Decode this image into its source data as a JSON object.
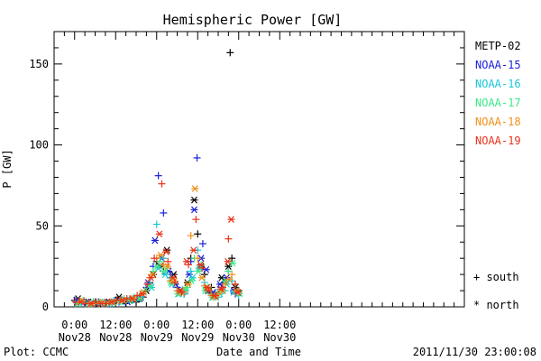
{
  "chart_data": {
    "type": "scatter",
    "title": "Hemispheric Power [GW]",
    "ylabel": "P [GW]",
    "xlabel": "Date and Time",
    "ylim": [
      0,
      170
    ],
    "xlim_hours": [
      -6,
      114
    ],
    "y_ticks": [
      0,
      50,
      100,
      150
    ],
    "x_ticks": [
      {
        "h": 0,
        "line1": "0:00",
        "line2": "Nov28"
      },
      {
        "h": 12,
        "line1": "12:00",
        "line2": "Nov28"
      },
      {
        "h": 24,
        "line1": "0:00",
        "line2": "Nov29"
      },
      {
        "h": 36,
        "line1": "12:00",
        "line2": "Nov29"
      },
      {
        "h": 48,
        "line1": "0:00",
        "line2": "Nov30"
      },
      {
        "h": 60,
        "line1": "12:00",
        "line2": "Nov30"
      }
    ],
    "x_unit_note": "x values are hours since 2011-11-28 00:00",
    "footer_left": "Plot: CCMC",
    "footer_right": "2011/11/30 23:00:08",
    "legend_marks": {
      "south_symbol": "+",
      "south_label": "south",
      "north_symbol": "*",
      "north_label": "north"
    },
    "series": [
      {
        "name": "METP-02",
        "color": "#000000",
        "south": [
          [
            0,
            4
          ],
          [
            3,
            2
          ],
          [
            6,
            3
          ],
          [
            9,
            2
          ],
          [
            12,
            4
          ],
          [
            15,
            2
          ],
          [
            18,
            3
          ],
          [
            20,
            6
          ],
          [
            22,
            15
          ],
          [
            24,
            28
          ],
          [
            26,
            22
          ],
          [
            28,
            18
          ],
          [
            30,
            12
          ],
          [
            32,
            8
          ],
          [
            34,
            30
          ],
          [
            36,
            45
          ],
          [
            38,
            20
          ],
          [
            40,
            12
          ],
          [
            42,
            8
          ],
          [
            44,
            15
          ],
          [
            45.5,
            157
          ],
          [
            46,
            30
          ],
          [
            48,
            10
          ]
        ],
        "north": [
          [
            1,
            5
          ],
          [
            4,
            3
          ],
          [
            7,
            2
          ],
          [
            10,
            3
          ],
          [
            13,
            6
          ],
          [
            16,
            4
          ],
          [
            19,
            5
          ],
          [
            21,
            10
          ],
          [
            23,
            20
          ],
          [
            25,
            25
          ],
          [
            27,
            35
          ],
          [
            29,
            20
          ],
          [
            31,
            10
          ],
          [
            33,
            15
          ],
          [
            35,
            66
          ],
          [
            37,
            25
          ],
          [
            39,
            10
          ],
          [
            41,
            7
          ],
          [
            43,
            18
          ],
          [
            45,
            25
          ],
          [
            47,
            12
          ]
        ]
      },
      {
        "name": "NOAA-15",
        "color": "#1b22d6",
        "south": [
          [
            1,
            3
          ],
          [
            4,
            2
          ],
          [
            7,
            3
          ],
          [
            10,
            2
          ],
          [
            13,
            3
          ],
          [
            16,
            4
          ],
          [
            19,
            6
          ],
          [
            21,
            12
          ],
          [
            23,
            25
          ],
          [
            24.5,
            81
          ],
          [
            26,
            58
          ],
          [
            28,
            20
          ],
          [
            30,
            12
          ],
          [
            32,
            10
          ],
          [
            34,
            28
          ],
          [
            35.8,
            92
          ],
          [
            37.5,
            39
          ],
          [
            39,
            10
          ],
          [
            41,
            8
          ],
          [
            43,
            12
          ],
          [
            45,
            22
          ],
          [
            47,
            8
          ]
        ],
        "north": [
          [
            0.5,
            4
          ],
          [
            3.5,
            3
          ],
          [
            6.5,
            2
          ],
          [
            9.5,
            3
          ],
          [
            12.5,
            4
          ],
          [
            15.5,
            3
          ],
          [
            18.5,
            5
          ],
          [
            21.5,
            15
          ],
          [
            23.5,
            41
          ],
          [
            25.5,
            30
          ],
          [
            27.5,
            22
          ],
          [
            29.5,
            14
          ],
          [
            31.5,
            9
          ],
          [
            33.5,
            20
          ],
          [
            35,
            60
          ],
          [
            37,
            30
          ],
          [
            38.5,
            23
          ],
          [
            40.5,
            9
          ],
          [
            42.5,
            14
          ],
          [
            44.5,
            18
          ],
          [
            46.5,
            10
          ]
        ]
      },
      {
        "name": "NOAA-16",
        "color": "#19c7d9",
        "south": [
          [
            2,
            3
          ],
          [
            5,
            2
          ],
          [
            8,
            2
          ],
          [
            11,
            3
          ],
          [
            14,
            4
          ],
          [
            17,
            5
          ],
          [
            20,
            8
          ],
          [
            22,
            14
          ],
          [
            24,
            51
          ],
          [
            26,
            30
          ],
          [
            28,
            18
          ],
          [
            30,
            10
          ],
          [
            32,
            8
          ],
          [
            34,
            22
          ],
          [
            36,
            35
          ],
          [
            38,
            15
          ],
          [
            40,
            8
          ],
          [
            42,
            6
          ],
          [
            44,
            10
          ],
          [
            46,
            16
          ],
          [
            48,
            7
          ]
        ],
        "north": [
          [
            1.5,
            2
          ],
          [
            4.5,
            2
          ],
          [
            7.5,
            3
          ],
          [
            10.5,
            2
          ],
          [
            13.5,
            3
          ],
          [
            16.5,
            4
          ],
          [
            19.5,
            6
          ],
          [
            22.5,
            12
          ],
          [
            24.5,
            24
          ],
          [
            26.5,
            20
          ],
          [
            28.5,
            14
          ],
          [
            30.5,
            8
          ],
          [
            32.5,
            10
          ],
          [
            34.5,
            18
          ],
          [
            36.5,
            24
          ],
          [
            38.5,
            12
          ],
          [
            40.5,
            6
          ],
          [
            42.5,
            8
          ],
          [
            44.5,
            14
          ],
          [
            46.5,
            9
          ]
        ]
      },
      {
        "name": "NOAA-17",
        "color": "#3de88a",
        "south": [
          [
            2.5,
            4
          ],
          [
            5.5,
            3
          ],
          [
            8.5,
            2
          ],
          [
            11.5,
            4
          ],
          [
            14.5,
            5
          ],
          [
            17.5,
            6
          ],
          [
            20.5,
            10
          ],
          [
            23,
            22
          ],
          [
            25,
            28
          ],
          [
            27,
            24
          ],
          [
            29,
            16
          ],
          [
            31,
            9
          ],
          [
            33,
            12
          ],
          [
            35,
            30
          ],
          [
            37,
            26
          ],
          [
            39,
            12
          ],
          [
            41,
            7
          ],
          [
            43,
            9
          ],
          [
            45,
            22
          ],
          [
            47,
            14
          ]
        ],
        "north": [
          [
            0.8,
            2
          ],
          [
            3.8,
            2
          ],
          [
            6.8,
            3
          ],
          [
            9.8,
            2
          ],
          [
            12.8,
            3
          ],
          [
            15.8,
            4
          ],
          [
            18.8,
            5
          ],
          [
            21.8,
            13
          ],
          [
            24.2,
            25
          ],
          [
            26.2,
            22
          ],
          [
            28.2,
            15
          ],
          [
            30.2,
            8
          ],
          [
            32.2,
            11
          ],
          [
            34.2,
            16
          ],
          [
            36.2,
            22
          ],
          [
            38.2,
            10
          ],
          [
            40.2,
            6
          ],
          [
            42.2,
            9
          ],
          [
            44.2,
            16
          ],
          [
            46.2,
            27
          ],
          [
            48.2,
            8
          ]
        ]
      },
      {
        "name": "NOAA-18",
        "color": "#f0901a",
        "south": [
          [
            1.2,
            3
          ],
          [
            4.2,
            2
          ],
          [
            7.2,
            2
          ],
          [
            10.2,
            3
          ],
          [
            13.2,
            4
          ],
          [
            16.2,
            5
          ],
          [
            19.2,
            7
          ],
          [
            22,
            18
          ],
          [
            24,
            30
          ],
          [
            26,
            26
          ],
          [
            28,
            16
          ],
          [
            30,
            10
          ],
          [
            32,
            9
          ],
          [
            34,
            44
          ],
          [
            36,
            30
          ],
          [
            38,
            13
          ],
          [
            40,
            7
          ],
          [
            42,
            8
          ],
          [
            44,
            14
          ],
          [
            46,
            20
          ],
          [
            48,
            9
          ]
        ],
        "north": [
          [
            2.2,
            4
          ],
          [
            5.2,
            2
          ],
          [
            8.2,
            3
          ],
          [
            11.2,
            3
          ],
          [
            14.2,
            4
          ],
          [
            17.2,
            5
          ],
          [
            20.2,
            9
          ],
          [
            22.8,
            20
          ],
          [
            25.2,
            32
          ],
          [
            27.2,
            25
          ],
          [
            29.2,
            16
          ],
          [
            31.2,
            9
          ],
          [
            33.2,
            14
          ],
          [
            35.2,
            73
          ],
          [
            37.2,
            18
          ],
          [
            39.2,
            11
          ],
          [
            41.2,
            6
          ],
          [
            43.2,
            10
          ],
          [
            45.2,
            17
          ],
          [
            47.2,
            10
          ]
        ]
      },
      {
        "name": "NOAA-19",
        "color": "#e8321a",
        "south": [
          [
            0.3,
            3
          ],
          [
            3.3,
            2
          ],
          [
            6.3,
            3
          ],
          [
            9.3,
            2
          ],
          [
            12.3,
            4
          ],
          [
            15.3,
            5
          ],
          [
            18.3,
            7
          ],
          [
            21.3,
            14
          ],
          [
            23.3,
            30
          ],
          [
            25.5,
            76
          ],
          [
            27.3,
            28
          ],
          [
            29.3,
            15
          ],
          [
            31.3,
            9
          ],
          [
            33.3,
            26
          ],
          [
            35.5,
            54
          ],
          [
            37.3,
            24
          ],
          [
            39.3,
            10
          ],
          [
            41.3,
            7
          ],
          [
            43.3,
            12
          ],
          [
            45,
            42
          ],
          [
            47,
            14
          ]
        ],
        "north": [
          [
            1.8,
            3
          ],
          [
            4.8,
            2
          ],
          [
            7.8,
            2
          ],
          [
            10.8,
            3
          ],
          [
            13.8,
            4
          ],
          [
            16.8,
            5
          ],
          [
            19.8,
            8
          ],
          [
            22.3,
            18
          ],
          [
            24.8,
            45
          ],
          [
            26.8,
            34
          ],
          [
            28.8,
            18
          ],
          [
            30.8,
            10
          ],
          [
            32.8,
            28
          ],
          [
            34.8,
            35
          ],
          [
            36.8,
            26
          ],
          [
            38.8,
            12
          ],
          [
            40.8,
            7
          ],
          [
            42.8,
            11
          ],
          [
            44.8,
            28
          ],
          [
            45.8,
            54
          ],
          [
            47.8,
            9
          ]
        ]
      }
    ]
  }
}
